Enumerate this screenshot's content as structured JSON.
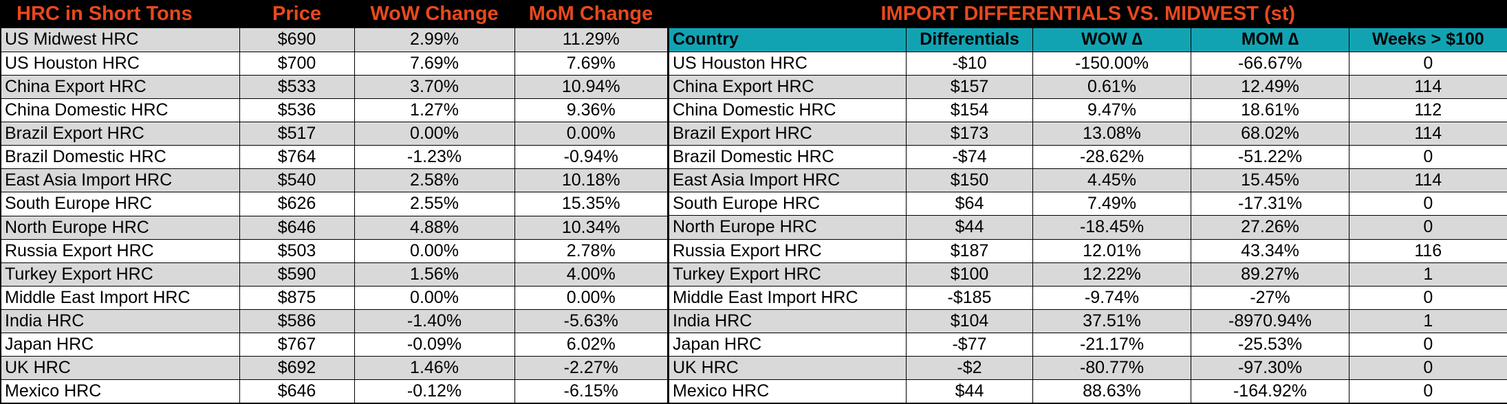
{
  "colors": {
    "header_bg": "#000000",
    "header_text": "#e8491d",
    "subheader_bg": "#12a3b3",
    "stripe": "#d9d9d9"
  },
  "left_table": {
    "headers": [
      "HRC in Short Tons",
      "Price",
      "WoW Change",
      "MoM Change"
    ],
    "rows": [
      [
        "US Midwest HRC",
        "$690",
        "2.99%",
        "11.29%"
      ],
      [
        "US Houston HRC",
        "$700",
        "7.69%",
        "7.69%"
      ],
      [
        "China Export HRC",
        "$533",
        "3.70%",
        "10.94%"
      ],
      [
        "China Domestic HRC",
        "$536",
        "1.27%",
        "9.36%"
      ],
      [
        "Brazil Export HRC",
        "$517",
        "0.00%",
        "0.00%"
      ],
      [
        "Brazil Domestic HRC",
        "$764",
        "-1.23%",
        "-0.94%"
      ],
      [
        "East Asia Import HRC",
        "$540",
        "2.58%",
        "10.18%"
      ],
      [
        "South Europe HRC",
        "$626",
        "2.55%",
        "15.35%"
      ],
      [
        "North Europe HRC",
        "$646",
        "4.88%",
        "10.34%"
      ],
      [
        "Russia Export HRC",
        "$503",
        "0.00%",
        "2.78%"
      ],
      [
        "Turkey Export HRC",
        "$590",
        "1.56%",
        "4.00%"
      ],
      [
        "Middle East Import HRC",
        "$875",
        "0.00%",
        "0.00%"
      ],
      [
        "India HRC",
        "$586",
        "-1.40%",
        "-5.63%"
      ],
      [
        "Japan HRC",
        "$767",
        "-0.09%",
        "6.02%"
      ],
      [
        "UK HRC",
        "$692",
        "1.46%",
        "-2.27%"
      ],
      [
        "Mexico HRC",
        "$646",
        "-0.12%",
        "-6.15%"
      ]
    ]
  },
  "right_table": {
    "title": "IMPORT DIFFERENTIALS VS. MIDWEST (st)",
    "headers": [
      "Country",
      "Differentials",
      "WOW ∆",
      "MOM ∆",
      "Weeks > $100"
    ],
    "rows": [
      [
        "US Houston HRC",
        "-$10",
        "-150.00%",
        "-66.67%",
        "0"
      ],
      [
        "China Export HRC",
        "$157",
        "0.61%",
        "12.49%",
        "114"
      ],
      [
        "China Domestic HRC",
        "$154",
        "9.47%",
        "18.61%",
        "112"
      ],
      [
        "Brazil Export HRC",
        "$173",
        "13.08%",
        "68.02%",
        "114"
      ],
      [
        "Brazil Domestic HRC",
        "-$74",
        "-28.62%",
        "-51.22%",
        "0"
      ],
      [
        "East Asia Import HRC",
        "$150",
        "4.45%",
        "15.45%",
        "114"
      ],
      [
        "South Europe HRC",
        "$64",
        "7.49%",
        "-17.31%",
        "0"
      ],
      [
        "North Europe HRC",
        "$44",
        "-18.45%",
        "27.26%",
        "0"
      ],
      [
        "Russia Export HRC",
        "$187",
        "12.01%",
        "43.34%",
        "116"
      ],
      [
        "Turkey Export HRC",
        "$100",
        "12.22%",
        "89.27%",
        "1"
      ],
      [
        "Middle East Import HRC",
        "-$185",
        "-9.74%",
        "-27%",
        "0"
      ],
      [
        "India HRC",
        "$104",
        "37.51%",
        "-8970.94%",
        "1"
      ],
      [
        "Japan HRC",
        "-$77",
        "-21.17%",
        "-25.53%",
        "0"
      ],
      [
        "UK HRC",
        "-$2",
        "-80.77%",
        "-97.30%",
        "0"
      ],
      [
        "Mexico HRC",
        "$44",
        "88.63%",
        "-164.92%",
        "0"
      ]
    ]
  }
}
